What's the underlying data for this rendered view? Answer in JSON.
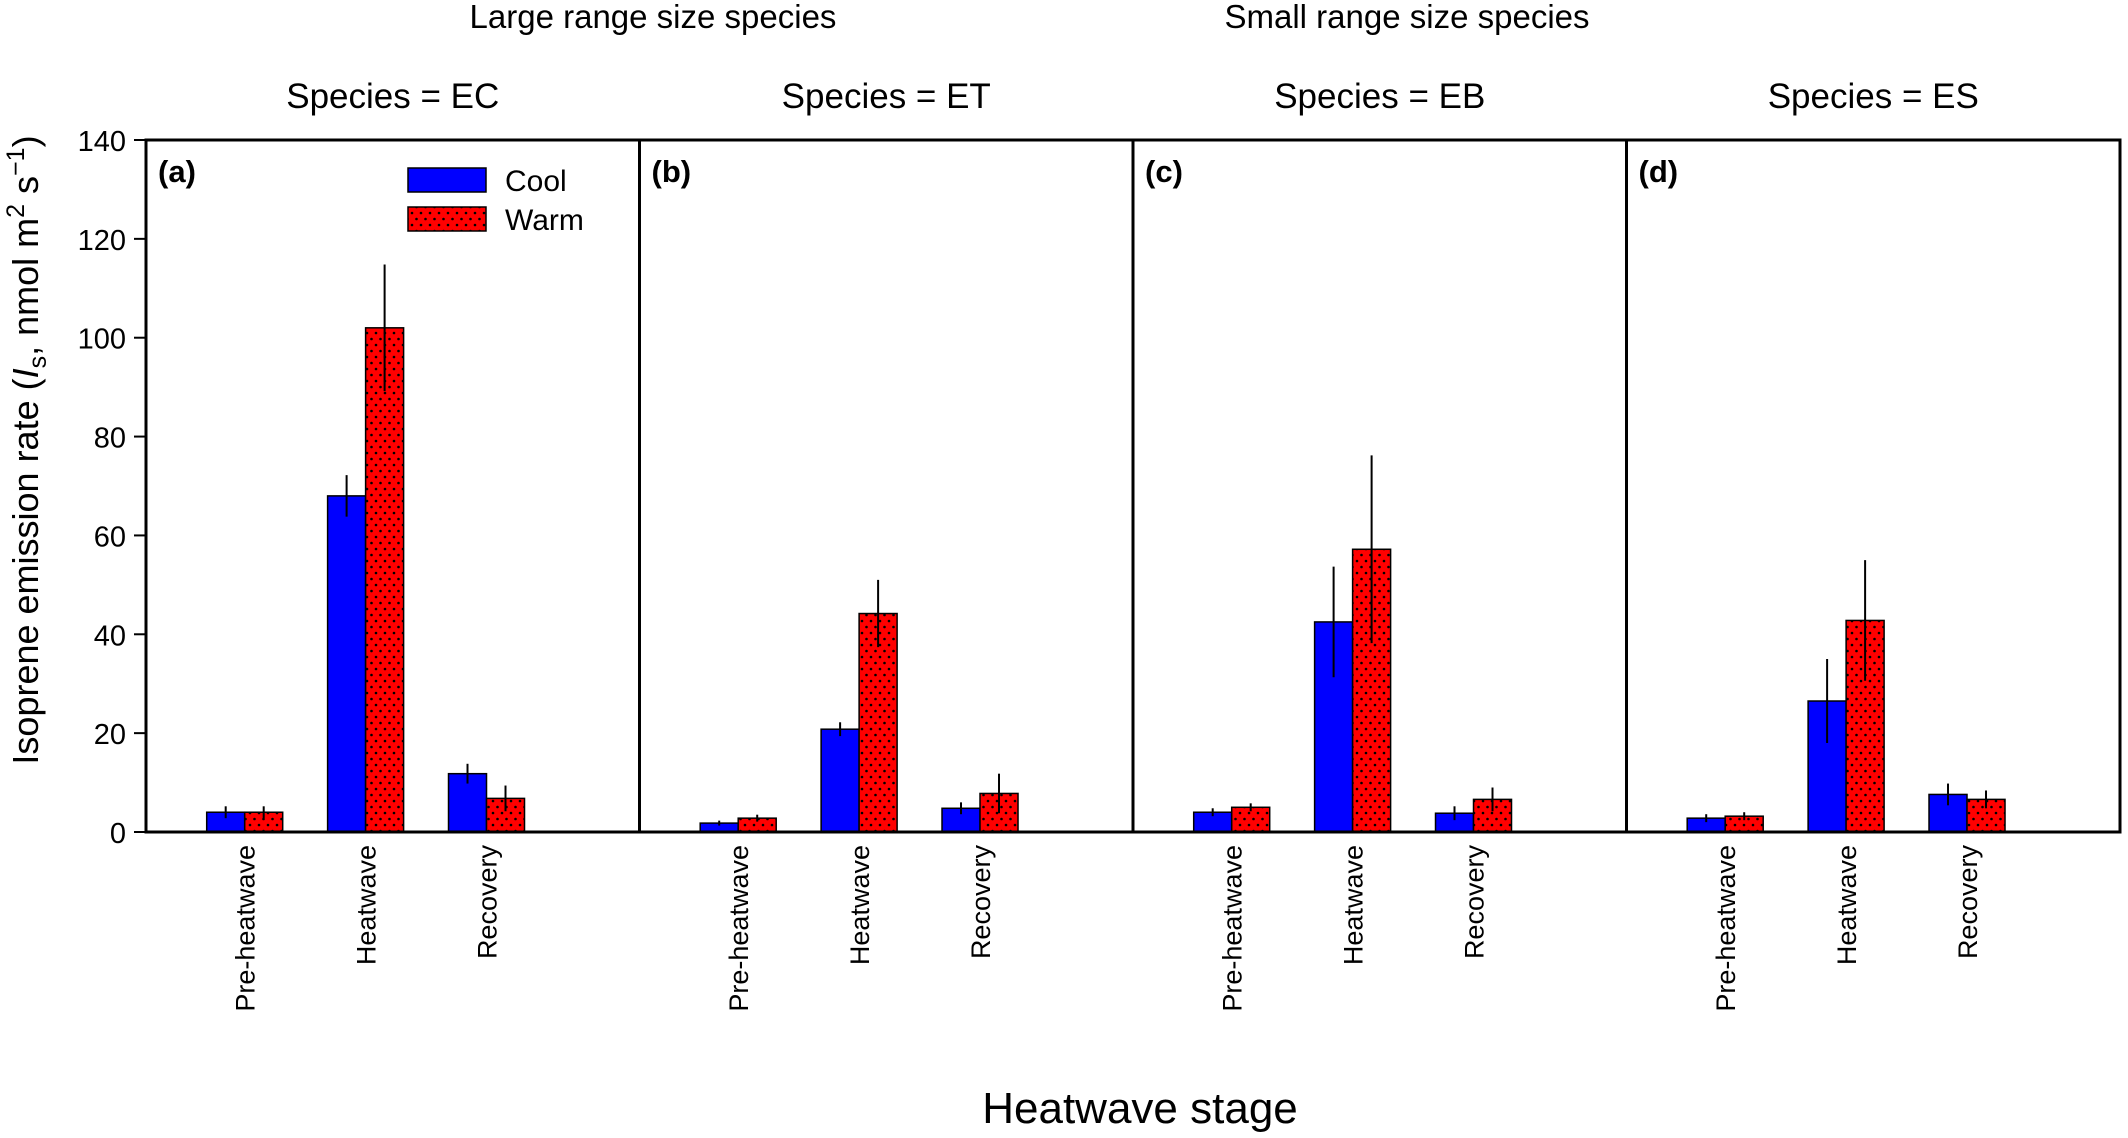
{
  "figure": {
    "group_titles": [
      "Large range size species",
      "Small range size species"
    ],
    "xlabel": "Heatwave stage",
    "ylabel": {
      "prefix": "Isoprene emission rate (",
      "symbol": "I",
      "symbol_sub": "s",
      "unit_text": ", nmol m",
      "unit_exp1": "2",
      "unit_s": " s",
      "unit_exp2": "−1",
      "suffix": ")"
    },
    "legend": [
      {
        "label": "Cool",
        "color": "#0000ff",
        "pattern": "solid"
      },
      {
        "label": "Warm",
        "color": "#ff0000",
        "pattern": "dotted"
      }
    ]
  },
  "chart_data": [
    {
      "type": "bar",
      "panel_label": "(a)",
      "title": "Species = EC",
      "categories": [
        "Pre-heatwave",
        "Heatwave",
        "Recovery"
      ],
      "ylim": [
        0,
        140
      ],
      "yticks": [
        0,
        20,
        40,
        60,
        80,
        100,
        120,
        140
      ],
      "series": [
        {
          "name": "Cool",
          "values": [
            4.0,
            68.0,
            11.8
          ],
          "errors": [
            1.2,
            4.2,
            2.0
          ]
        },
        {
          "name": "Warm",
          "values": [
            4.0,
            102.0,
            6.8
          ],
          "errors": [
            1.2,
            12.8,
            2.6
          ]
        }
      ]
    },
    {
      "type": "bar",
      "panel_label": "(b)",
      "title": "Species = ET",
      "categories": [
        "Pre-heatwave",
        "Heatwave",
        "Recovery"
      ],
      "ylim": [
        0,
        140
      ],
      "yticks": [
        0,
        20,
        40,
        60,
        80,
        100,
        120,
        140
      ],
      "series": [
        {
          "name": "Cool",
          "values": [
            1.8,
            20.8,
            4.8
          ],
          "errors": [
            0.5,
            1.4,
            1.2
          ]
        },
        {
          "name": "Warm",
          "values": [
            2.8,
            44.2,
            7.8
          ],
          "errors": [
            0.7,
            6.8,
            4.0
          ]
        }
      ]
    },
    {
      "type": "bar",
      "panel_label": "(c)",
      "title": "Species = EB",
      "categories": [
        "Pre-heatwave",
        "Heatwave",
        "Recovery"
      ],
      "ylim": [
        0,
        140
      ],
      "yticks": [
        0,
        20,
        40,
        60,
        80,
        100,
        120,
        140
      ],
      "series": [
        {
          "name": "Cool",
          "values": [
            4.0,
            42.5,
            3.8
          ],
          "errors": [
            0.8,
            11.2,
            1.4
          ]
        },
        {
          "name": "Warm",
          "values": [
            5.0,
            57.2,
            6.6
          ],
          "errors": [
            0.8,
            19.0,
            2.4
          ]
        }
      ]
    },
    {
      "type": "bar",
      "panel_label": "(d)",
      "title": "Species = ES",
      "categories": [
        "Pre-heatwave",
        "Heatwave",
        "Recovery"
      ],
      "ylim": [
        0,
        140
      ],
      "yticks": [
        0,
        20,
        40,
        60,
        80,
        100,
        120,
        140
      ],
      "series": [
        {
          "name": "Cool",
          "values": [
            2.8,
            26.5,
            7.6
          ],
          "errors": [
            0.8,
            8.5,
            2.2
          ]
        },
        {
          "name": "Warm",
          "values": [
            3.2,
            42.8,
            6.6
          ],
          "errors": [
            0.8,
            12.2,
            1.8
          ]
        }
      ]
    }
  ]
}
